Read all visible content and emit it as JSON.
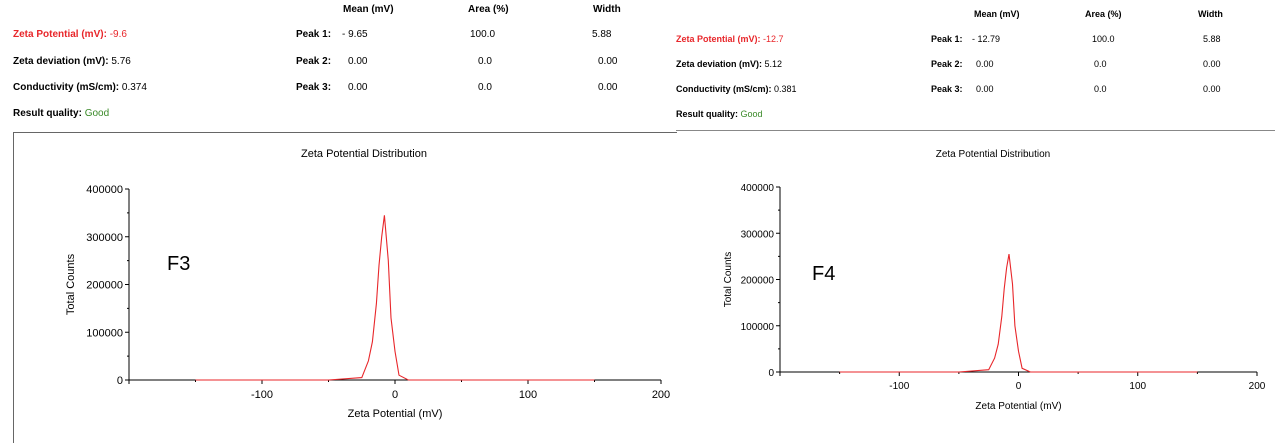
{
  "panels": [
    {
      "summary": {
        "zeta_label": "Zeta Potential (mV):",
        "zeta_value": "-9.6",
        "deviation_label": "Zeta deviation (mV):",
        "deviation_value": "5.76",
        "conductivity_label": "Conductivity (mS/cm):",
        "conductivity_value": "0.374",
        "quality_label": "Result quality:",
        "quality_value": "Good"
      },
      "peaks": {
        "headers": [
          "Mean (mV)",
          "Area (%)",
          "Width"
        ],
        "rows": [
          {
            "label": "Peak 1:",
            "mean": "- 9.65",
            "area": "100.0",
            "width": "5.88"
          },
          {
            "label": "Peak 2:",
            "mean": "0.00",
            "area": "0.0",
            "width": "0.00"
          },
          {
            "label": "Peak 3:",
            "mean": "0.00",
            "area": "0.0",
            "width": "0.00"
          }
        ]
      },
      "tag": "F3"
    },
    {
      "summary": {
        "zeta_label": "Zeta Potential (mV):",
        "zeta_value": "-12.7",
        "deviation_label": "Zeta deviation (mV):",
        "deviation_value": "5.12",
        "conductivity_label": "Conductivity (mS/cm):",
        "conductivity_value": "0.381",
        "quality_label": "Result quality:",
        "quality_value": "Good"
      },
      "peaks": {
        "headers": [
          "Mean (mV)",
          "Area (%)",
          "Width"
        ],
        "rows": [
          {
            "label": "Peak 1:",
            "mean": "- 12.79",
            "area": "100.0",
            "width": "5.88"
          },
          {
            "label": "Peak 2:",
            "mean": "0.00",
            "area": "0.0",
            "width": "0.00"
          },
          {
            "label": "Peak 3:",
            "mean": "0.00",
            "area": "0.0",
            "width": "0.00"
          }
        ]
      },
      "tag": "F4"
    }
  ],
  "colors": {
    "curve": "#e8262a",
    "accent_red": "#e8262a",
    "good": "#3a8a28"
  },
  "chart_data": [
    {
      "type": "line",
      "title": "Zeta Potential Distribution",
      "xlabel": "Zeta Potential (mV)",
      "ylabel": "Total Counts",
      "xlim": [
        -200,
        200
      ],
      "ylim": [
        0,
        400000
      ],
      "x_ticks": [
        -100,
        0,
        100,
        200
      ],
      "y_ticks": [
        0,
        100000,
        200000,
        300000,
        400000
      ],
      "grid": false,
      "series": [
        {
          "x": [
            -150,
            -50,
            -25,
            -20,
            -17,
            -14,
            -12,
            -10,
            -8,
            -5,
            -3,
            0,
            3,
            10,
            50,
            150
          ],
          "values": [
            0,
            0,
            5000,
            40000,
            80000,
            160000,
            240000,
            300000,
            345000,
            250000,
            130000,
            60000,
            10000,
            0,
            0,
            0
          ]
        }
      ]
    },
    {
      "type": "line",
      "title": "Zeta Potential Distribution",
      "xlabel": "Zeta Potential (mV)",
      "ylabel": "Total Counts",
      "xlim": [
        -200,
        200
      ],
      "ylim": [
        0,
        400000
      ],
      "x_ticks": [
        -100,
        0,
        100,
        200
      ],
      "y_ticks": [
        0,
        100000,
        200000,
        300000,
        400000
      ],
      "grid": false,
      "series": [
        {
          "x": [
            -150,
            -50,
            -25,
            -20,
            -17,
            -14,
            -12,
            -10,
            -8,
            -5,
            -3,
            0,
            3,
            10,
            50,
            150
          ],
          "values": [
            0,
            0,
            5000,
            30000,
            60000,
            120000,
            180000,
            225000,
            255000,
            190000,
            100000,
            45000,
            8000,
            0,
            0,
            0
          ]
        }
      ]
    }
  ]
}
